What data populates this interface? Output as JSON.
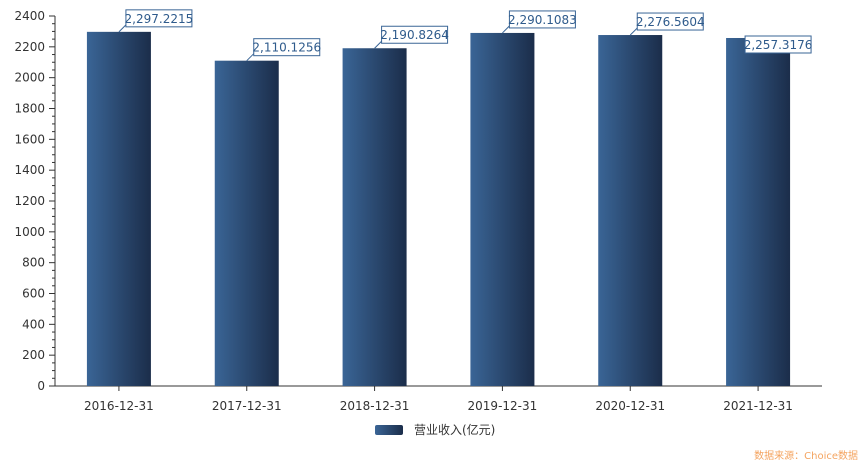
{
  "chart_data": {
    "type": "bar",
    "categories": [
      "2016-12-31",
      "2017-12-31",
      "2018-12-31",
      "2019-12-31",
      "2020-12-31",
      "2021-12-31"
    ],
    "series": [
      {
        "name": "营业收入(亿元)",
        "values": [
          2297.2215,
          2110.1256,
          2190.8264,
          2290.1083,
          2276.5604,
          2257.3176
        ],
        "labels": [
          "2,297.2215",
          "2,110.1256",
          "2,190.8264",
          "2,290.1083",
          "2,276.5604",
          "2,257.3176"
        ]
      }
    ],
    "yticks": [
      "0",
      "200",
      "400",
      "600",
      "800",
      "1000",
      "1200",
      "1400",
      "1600",
      "1800",
      "2000",
      "2200",
      "2400"
    ],
    "ylim": [
      0,
      2400
    ],
    "grid": false,
    "legend_position": "bottom-center",
    "colors": {
      "bar_light": "#3a6596",
      "bar_dark": "#1b2d4a",
      "label_border": "#3a6596",
      "source": "#f4a460"
    }
  },
  "source_note": "数据来源：Choice数据"
}
